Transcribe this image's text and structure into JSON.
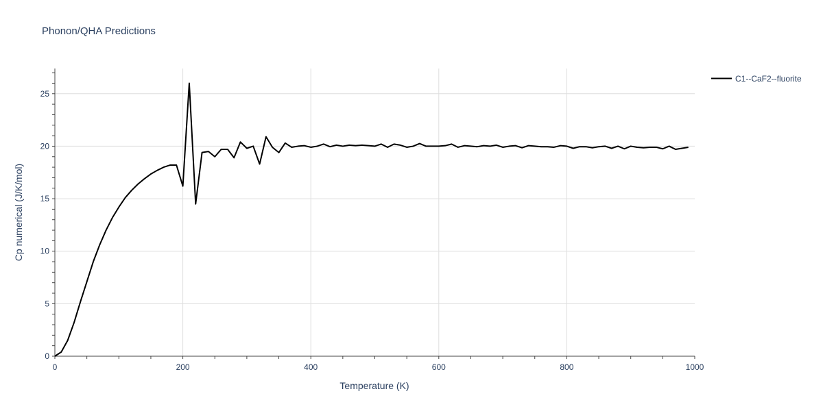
{
  "chart_data": {
    "type": "line",
    "title": "Phonon/QHA Predictions",
    "xlabel": "Temperature (K)",
    "ylabel": "Cp numerical (J/K/mol)",
    "xlim": [
      0,
      1000
    ],
    "ylim": [
      0,
      27.4
    ],
    "x_ticks": [
      0,
      200,
      400,
      600,
      800,
      1000
    ],
    "y_ticks": [
      0,
      5,
      10,
      15,
      20,
      25
    ],
    "grid": true,
    "legend_position": "top-right",
    "series": [
      {
        "name": "C1--CaF2--fluorite",
        "color": "#000000",
        "x": [
          0,
          10,
          20,
          30,
          40,
          50,
          60,
          70,
          80,
          90,
          100,
          110,
          120,
          130,
          140,
          150,
          160,
          170,
          180,
          190,
          200,
          210,
          220,
          230,
          240,
          250,
          260,
          270,
          280,
          290,
          300,
          310,
          320,
          330,
          340,
          350,
          360,
          370,
          380,
          390,
          400,
          410,
          420,
          430,
          440,
          450,
          460,
          470,
          480,
          490,
          500,
          510,
          520,
          530,
          540,
          550,
          560,
          570,
          580,
          590,
          600,
          610,
          620,
          630,
          640,
          650,
          660,
          670,
          680,
          690,
          700,
          710,
          720,
          730,
          740,
          750,
          760,
          770,
          780,
          790,
          800,
          810,
          820,
          830,
          840,
          850,
          860,
          870,
          880,
          890,
          900,
          910,
          920,
          930,
          940,
          950,
          960,
          970,
          980,
          990
        ],
        "y": [
          0.0,
          0.4,
          1.5,
          3.2,
          5.2,
          7.1,
          9.0,
          10.6,
          12.0,
          13.2,
          14.2,
          15.1,
          15.8,
          16.4,
          16.9,
          17.35,
          17.7,
          18.0,
          18.2,
          18.2,
          16.2,
          26.0,
          14.5,
          19.4,
          19.5,
          19.0,
          19.7,
          19.7,
          18.9,
          20.4,
          19.8,
          20.0,
          18.3,
          20.9,
          19.9,
          19.4,
          20.3,
          19.9,
          20.0,
          20.05,
          19.9,
          20.0,
          20.2,
          19.95,
          20.1,
          20.0,
          20.1,
          20.05,
          20.1,
          20.05,
          20.0,
          20.2,
          19.9,
          20.2,
          20.1,
          19.9,
          20.0,
          20.25,
          20.0,
          20.0,
          20.0,
          20.05,
          20.2,
          19.9,
          20.05,
          20.0,
          19.95,
          20.05,
          20.0,
          20.1,
          19.9,
          20.0,
          20.05,
          19.85,
          20.05,
          20.0,
          19.95,
          19.95,
          19.9,
          20.05,
          20.0,
          19.8,
          19.95,
          19.95,
          19.85,
          19.95,
          20.0,
          19.8,
          20.0,
          19.75,
          20.0,
          19.9,
          19.85,
          19.9,
          19.9,
          19.75,
          20.0,
          19.7,
          19.8,
          19.9
        ]
      }
    ]
  }
}
